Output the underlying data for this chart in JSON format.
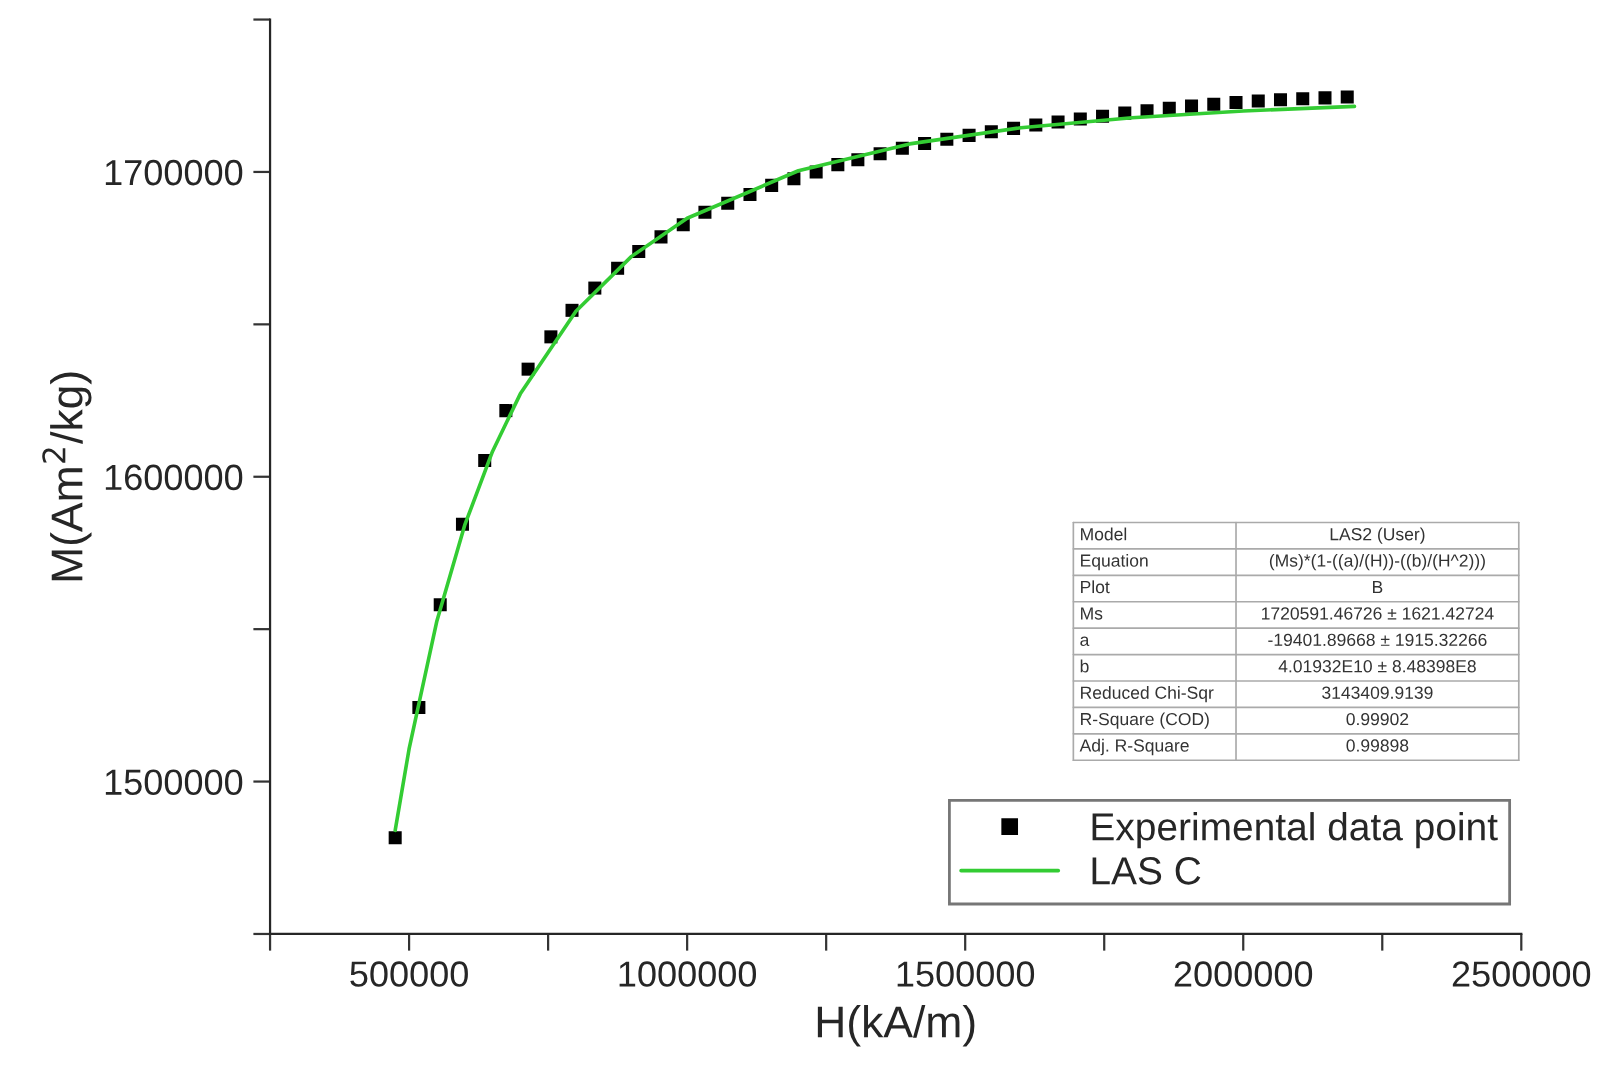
{
  "chart_data": {
    "type": "scatter",
    "xlabel": "H(kA/m)",
    "ylabel": "M(Am$^{2}$/kg)",
    "xlim": [
      250000,
      2500000
    ],
    "ylim": [
      1450000,
      1750000
    ],
    "xticks": [
      {
        "value": 250000,
        "label": null
      },
      500000,
      {
        "value": 750000,
        "label": null
      },
      1000000,
      {
        "value": 1250000,
        "label": null
      },
      1500000,
      {
        "value": 1750000,
        "label": null
      },
      2000000,
      {
        "value": 2250000,
        "label": null
      },
      2500000
    ],
    "yticks": [
      {
        "value": 1450000,
        "label": null
      },
      1500000,
      {
        "value": 1550000,
        "label": null
      },
      1600000,
      {
        "value": 1650000,
        "label": null
      },
      1700000,
      {
        "value": 1750000,
        "label": null
      }
    ],
    "grid": false,
    "legend": "bottom right",
    "series": [
      {
        "name": "Experimental data point",
        "marker": "square",
        "color": "#000000",
        "x": [
          475000,
          517600,
          556000,
          596000,
          636000,
          674000,
          714000,
          755000,
          793000,
          834000,
          875000,
          913000,
          953000,
          993000,
          1032000,
          1073000,
          1113000,
          1152000,
          1192000,
          1232000,
          1271000,
          1307000,
          1347000,
          1387000,
          1427000,
          1467000,
          1507000,
          1547000,
          1587000,
          1627000,
          1667000,
          1707000,
          1747000,
          1787000,
          1827000,
          1867000,
          1907000,
          1947000,
          1987000,
          2027000,
          2067000,
          2107000,
          2147000,
          2187000
        ],
        "values": [
          1481600,
          1524300,
          1558000,
          1584400,
          1605300,
          1621700,
          1635300,
          1645900,
          1654600,
          1661900,
          1668400,
          1673900,
          1678700,
          1682700,
          1686800,
          1689700,
          1692600,
          1695600,
          1697800,
          1700000,
          1702400,
          1704000,
          1706000,
          1707800,
          1709300,
          1710700,
          1712000,
          1713200,
          1714300,
          1715400,
          1716400,
          1717400,
          1718300,
          1719300,
          1720100,
          1720900,
          1721600,
          1722200,
          1722800,
          1723300,
          1723700,
          1724000,
          1724300,
          1724600
        ]
      },
      {
        "name": "LAS C",
        "type": "line",
        "line_style": "solid",
        "color": "#33cc33",
        "x": [
          475000,
          500000,
          550000,
          600000,
          650000,
          700000,
          800000,
          900000,
          1000000,
          1200000,
          1400000,
          1600000,
          1800000,
          2000000,
          2200000
        ],
        "values": [
          1484000,
          1510700,
          1552700,
          1584100,
          1608300,
          1627200,
          1654300,
          1672300,
          1684800,
          1700400,
          1709200,
          1714500,
          1717800,
          1720000,
          1721500
        ]
      }
    ],
    "annotations": [
      "Model",
      "LAS2 (User)",
      "Equation",
      "(Ms)*(1-((a)/(H))-((b)/(H^2)))",
      "Plot",
      "B",
      "Ms",
      "1720591.46726 ± 1621.42724",
      "a",
      "-19401.89668 ± 1915.32266",
      "b",
      "4.01932E10 ± 8.48398E8",
      "Reduced Chi-Sqr",
      "3143409.9139",
      "R-Square (COD)",
      "0.99902",
      "Adj. R-Square",
      "0.99898"
    ]
  }
}
